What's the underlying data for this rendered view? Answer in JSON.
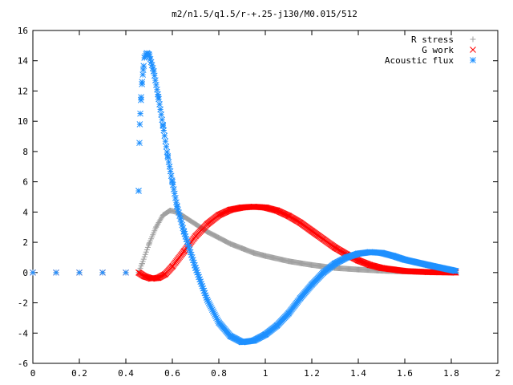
{
  "chart_data": {
    "type": "scatter",
    "title": "m2/n1.5/q1.5/r-+.25-j130/M0.015/512",
    "xlabel": "",
    "ylabel": "",
    "xlim": [
      0,
      2
    ],
    "ylim": [
      -6,
      16
    ],
    "xticks": [
      0,
      0.2,
      0.4,
      0.6,
      0.8,
      1,
      1.2,
      1.4,
      1.6,
      1.8,
      2
    ],
    "yticks": [
      -6,
      -4,
      -2,
      0,
      2,
      4,
      6,
      8,
      10,
      12,
      14,
      16
    ],
    "grid": false,
    "legend_position": "top-right",
    "series": [
      {
        "name": "R stress",
        "marker": "plus",
        "color": "#a0a0a0",
        "x": [
          0,
          0.1,
          0.2,
          0.3,
          0.4,
          0.455,
          0.47,
          0.5,
          0.53,
          0.56,
          0.59,
          0.62,
          0.65,
          0.7,
          0.75,
          0.8,
          0.85,
          0.9,
          0.95,
          1.0,
          1.1,
          1.2,
          1.3,
          1.4,
          1.5,
          1.6,
          1.7,
          1.82
        ],
        "y": [
          0,
          0,
          0,
          0,
          0,
          0,
          0.6,
          1.9,
          3.0,
          3.8,
          4.1,
          4.0,
          3.7,
          3.2,
          2.7,
          2.3,
          1.9,
          1.6,
          1.3,
          1.1,
          0.75,
          0.5,
          0.3,
          0.2,
          0.12,
          0.07,
          0.04,
          0.02
        ]
      },
      {
        "name": "G work",
        "marker": "cross",
        "color": "#ff0000",
        "x": [
          0,
          0.1,
          0.2,
          0.3,
          0.4,
          0.455,
          0.48,
          0.51,
          0.54,
          0.57,
          0.6,
          0.65,
          0.7,
          0.75,
          0.8,
          0.85,
          0.9,
          0.95,
          1.0,
          1.05,
          1.1,
          1.15,
          1.2,
          1.25,
          1.3,
          1.35,
          1.4,
          1.45,
          1.5,
          1.6,
          1.7,
          1.82
        ],
        "y": [
          0,
          0,
          0,
          0,
          0,
          0,
          -0.25,
          -0.4,
          -0.35,
          -0.1,
          0.4,
          1.4,
          2.4,
          3.2,
          3.8,
          4.15,
          4.3,
          4.35,
          4.3,
          4.1,
          3.75,
          3.3,
          2.75,
          2.2,
          1.65,
          1.2,
          0.8,
          0.5,
          0.3,
          0.1,
          0.03,
          0
        ]
      },
      {
        "name": "Acoustic flux",
        "marker": "star",
        "color": "#1e90ff",
        "x": [
          0,
          0.1,
          0.2,
          0.3,
          0.4,
          0.455,
          0.46,
          0.465,
          0.47,
          0.475,
          0.48,
          0.49,
          0.5,
          0.52,
          0.54,
          0.56,
          0.58,
          0.6,
          0.62,
          0.65,
          0.7,
          0.75,
          0.8,
          0.85,
          0.9,
          0.95,
          1.0,
          1.05,
          1.1,
          1.15,
          1.2,
          1.25,
          1.3,
          1.35,
          1.4,
          1.45,
          1.5,
          1.55,
          1.6,
          1.7,
          1.82
        ],
        "y": [
          0,
          0,
          0,
          0,
          0,
          5.4,
          9.8,
          11.4,
          12.6,
          13.4,
          14.2,
          14.5,
          14.4,
          13.3,
          11.6,
          9.7,
          7.7,
          6.0,
          4.4,
          2.7,
          0.3,
          -1.8,
          -3.3,
          -4.2,
          -4.6,
          -4.5,
          -4.1,
          -3.5,
          -2.7,
          -1.7,
          -0.8,
          0.0,
          0.6,
          1.0,
          1.25,
          1.35,
          1.3,
          1.1,
          0.85,
          0.5,
          0.1
        ]
      }
    ]
  }
}
